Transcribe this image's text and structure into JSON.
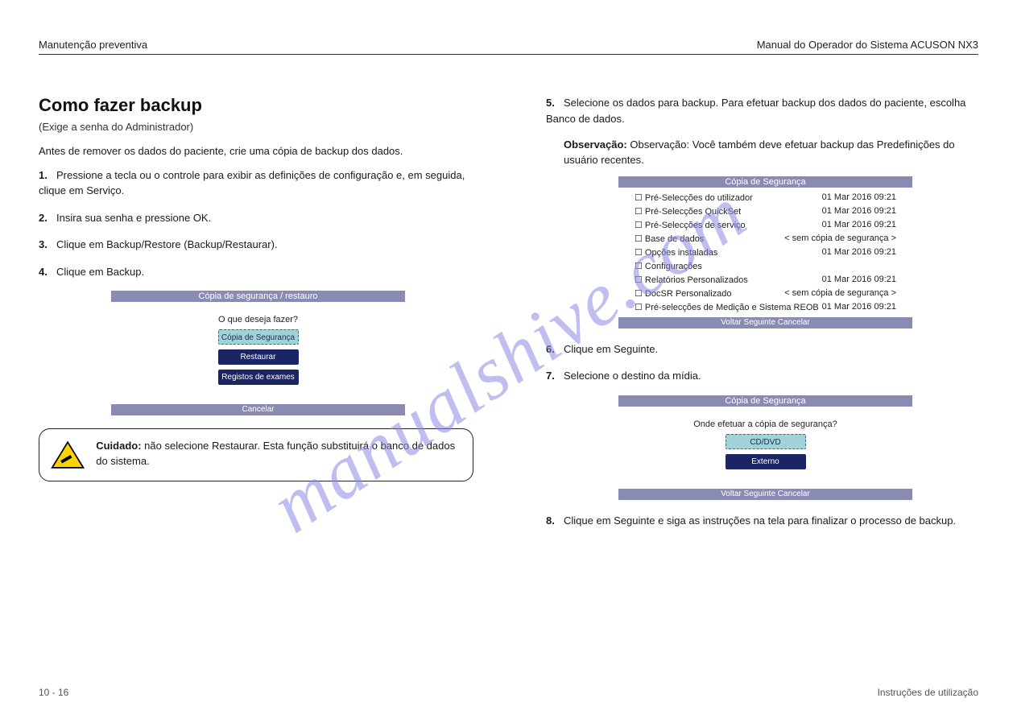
{
  "header": {
    "left": "Manutenção preventiva",
    "right": "Manual do Operador do Sistema ACUSON NX3"
  },
  "watermark": "manualshive.com",
  "left_column": {
    "section_title": "Como fazer backup",
    "section_sub": "(Exige a senha do Administrador)",
    "intro": "Antes de remover os dados do paciente, crie uma cópia de backup dos dados.",
    "steps": [
      "Pressione a tecla ou o controle para exibir as definições de configuração e, em seguida, clique em Serviço.",
      "Insira sua senha e pressione OK.",
      "Clique em Backup/Restore (Backup/Restaurar).",
      "Clique em Backup."
    ],
    "panel": {
      "title": "Cópia de segurança / restauro",
      "label": "O que deseja fazer?",
      "buttons": [
        {
          "text": "Cópia de Segurança",
          "style": "selected"
        },
        {
          "text": "Restaurar",
          "style": "dark"
        },
        {
          "text": "Registos de exames",
          "style": "dark"
        }
      ],
      "footer": "Cancelar"
    },
    "caution": {
      "label": "Cuidado:",
      "text": "não selecione Restaurar. Esta função substituirá o banco de dados do sistema."
    }
  },
  "right_column": {
    "step5": "Selecione os dados para backup. Para efetuar backup dos dados do paciente, escolha Banco de dados.",
    "note": "Observação: Você também deve efetuar backup das Predefinições do usuário recentes.",
    "panel1": {
      "title": "Cópia de Segurança",
      "label": "",
      "rows": [
        {
          "k": "Pré-Selecções do utilizador",
          "v": "01 Mar 2016 09:21"
        },
        {
          "k": "Pré-Selecções QuickSet",
          "v": "01 Mar 2016 09:21"
        },
        {
          "k": "Pré-Selecções de serviço",
          "v": "01 Mar 2016 09:21"
        },
        {
          "k": "Base de dados",
          "v": "< sem cópia de segurança >"
        },
        {
          "k": "Opções instaladas",
          "v": "01 Mar 2016 09:21"
        },
        {
          "k": "Configurações",
          "v": ""
        },
        {
          "k": "Relatórios Personalizados",
          "v": "01 Mar 2016 09:21"
        },
        {
          "k": "DocSR Personalizado",
          "v": "< sem cópia de segurança >"
        },
        {
          "k": "Pré-selecções de Medição e Sistema REOB",
          "v": "01 Mar 2016 09:21"
        }
      ],
      "footer": "Voltar    Seguinte    Cancelar"
    },
    "step6": "Clique em Seguinte.",
    "step7": "Selecione o destino da mídia.",
    "panel2": {
      "title": "Cópia de Segurança",
      "label": "Onde efetuar a cópia de segurança?",
      "buttons": [
        {
          "text": "CD/DVD",
          "style": "selected"
        },
        {
          "text": "Externo",
          "style": "dark"
        }
      ],
      "footer": "Voltar    Seguinte    Cancelar"
    },
    "finish": "Clique em Seguinte e siga as instruções na tela para finalizar o processo de backup."
  },
  "footer": {
    "left": "10 - 16",
    "right": "Instruções de utilização"
  },
  "colors": {
    "panel_border": "#8a8bb3",
    "btn_dark": "#1b2563",
    "btn_selected_bg": "#a1d2d8",
    "btn_selected_border": "#3a6e88",
    "watermark": "#8b8ae6"
  }
}
